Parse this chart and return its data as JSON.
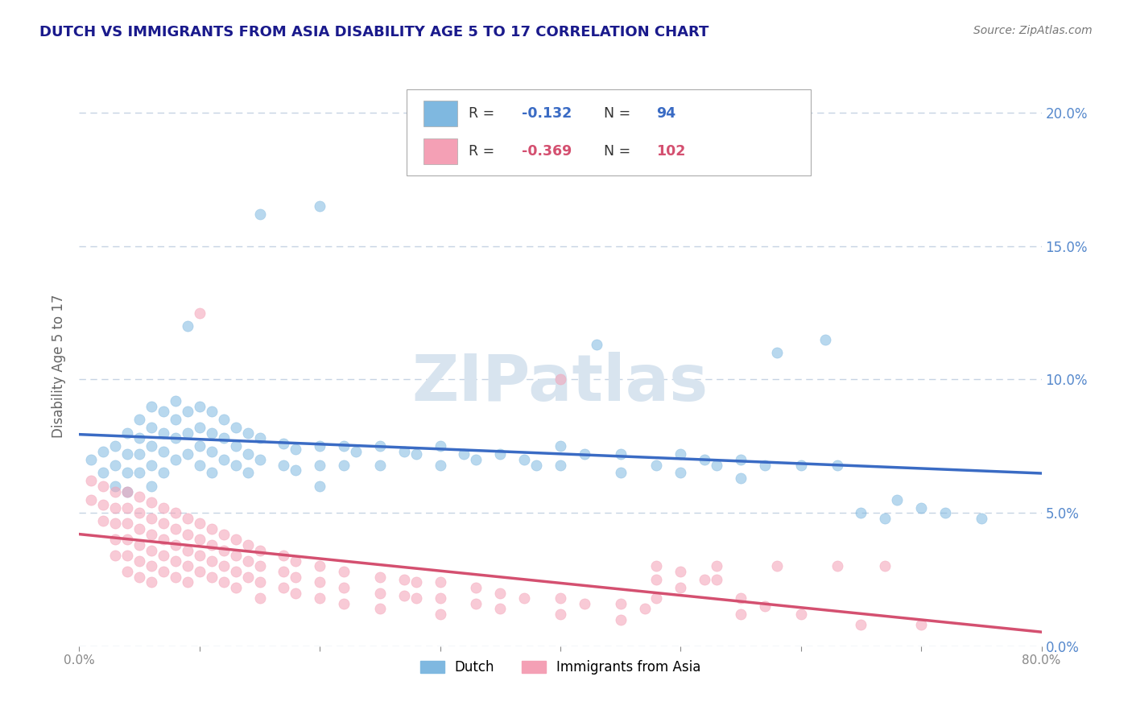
{
  "title": "DUTCH VS IMMIGRANTS FROM ASIA DISABILITY AGE 5 TO 17 CORRELATION CHART",
  "source": "Source: ZipAtlas.com",
  "ylabel": "Disability Age 5 to 17",
  "xlim": [
    0.0,
    0.8
  ],
  "ylim": [
    0.0,
    0.21
  ],
  "xticks": [
    0.0,
    0.1,
    0.2,
    0.3,
    0.4,
    0.5,
    0.6,
    0.7,
    0.8
  ],
  "xticklabels": [
    "0.0%",
    "",
    "",
    "",
    "",
    "",
    "",
    "",
    "80.0%"
  ],
  "yticks": [
    0.0,
    0.05,
    0.1,
    0.15,
    0.2
  ],
  "yticklabels": [
    "0.0%",
    "5.0%",
    "10.0%",
    "15.0%",
    "20.0%"
  ],
  "dutch_scatter_color": "#7fb8e0",
  "asia_scatter_color": "#f4a0b5",
  "dutch_line_color": "#3a6bc4",
  "asia_line_color": "#d45070",
  "dutch_R": -0.132,
  "dutch_N": 94,
  "asia_R": -0.369,
  "asia_N": 102,
  "legend_label_dutch": "Dutch",
  "legend_label_asia": "Immigrants from Asia",
  "watermark": "ZIPatlas",
  "dutch_scatter": [
    [
      0.01,
      0.07
    ],
    [
      0.02,
      0.073
    ],
    [
      0.02,
      0.065
    ],
    [
      0.03,
      0.075
    ],
    [
      0.03,
      0.068
    ],
    [
      0.03,
      0.06
    ],
    [
      0.04,
      0.08
    ],
    [
      0.04,
      0.072
    ],
    [
      0.04,
      0.065
    ],
    [
      0.04,
      0.058
    ],
    [
      0.05,
      0.085
    ],
    [
      0.05,
      0.078
    ],
    [
      0.05,
      0.072
    ],
    [
      0.05,
      0.065
    ],
    [
      0.06,
      0.09
    ],
    [
      0.06,
      0.082
    ],
    [
      0.06,
      0.075
    ],
    [
      0.06,
      0.068
    ],
    [
      0.06,
      0.06
    ],
    [
      0.07,
      0.088
    ],
    [
      0.07,
      0.08
    ],
    [
      0.07,
      0.073
    ],
    [
      0.07,
      0.065
    ],
    [
      0.08,
      0.092
    ],
    [
      0.08,
      0.085
    ],
    [
      0.08,
      0.078
    ],
    [
      0.08,
      0.07
    ],
    [
      0.09,
      0.12
    ],
    [
      0.09,
      0.088
    ],
    [
      0.09,
      0.08
    ],
    [
      0.09,
      0.072
    ],
    [
      0.1,
      0.09
    ],
    [
      0.1,
      0.082
    ],
    [
      0.1,
      0.075
    ],
    [
      0.1,
      0.068
    ],
    [
      0.11,
      0.088
    ],
    [
      0.11,
      0.08
    ],
    [
      0.11,
      0.073
    ],
    [
      0.11,
      0.065
    ],
    [
      0.12,
      0.085
    ],
    [
      0.12,
      0.078
    ],
    [
      0.12,
      0.07
    ],
    [
      0.13,
      0.082
    ],
    [
      0.13,
      0.075
    ],
    [
      0.13,
      0.068
    ],
    [
      0.14,
      0.08
    ],
    [
      0.14,
      0.072
    ],
    [
      0.14,
      0.065
    ],
    [
      0.15,
      0.078
    ],
    [
      0.15,
      0.07
    ],
    [
      0.15,
      0.162
    ],
    [
      0.17,
      0.076
    ],
    [
      0.17,
      0.068
    ],
    [
      0.18,
      0.074
    ],
    [
      0.18,
      0.066
    ],
    [
      0.2,
      0.165
    ],
    [
      0.2,
      0.075
    ],
    [
      0.2,
      0.068
    ],
    [
      0.2,
      0.06
    ],
    [
      0.22,
      0.075
    ],
    [
      0.22,
      0.068
    ],
    [
      0.23,
      0.073
    ],
    [
      0.25,
      0.075
    ],
    [
      0.25,
      0.068
    ],
    [
      0.27,
      0.073
    ],
    [
      0.28,
      0.072
    ],
    [
      0.3,
      0.075
    ],
    [
      0.3,
      0.068
    ],
    [
      0.32,
      0.072
    ],
    [
      0.33,
      0.07
    ],
    [
      0.35,
      0.072
    ],
    [
      0.37,
      0.07
    ],
    [
      0.38,
      0.068
    ],
    [
      0.4,
      0.075
    ],
    [
      0.4,
      0.068
    ],
    [
      0.42,
      0.072
    ],
    [
      0.43,
      0.113
    ],
    [
      0.45,
      0.072
    ],
    [
      0.45,
      0.065
    ],
    [
      0.48,
      0.068
    ],
    [
      0.5,
      0.072
    ],
    [
      0.5,
      0.065
    ],
    [
      0.52,
      0.07
    ],
    [
      0.53,
      0.068
    ],
    [
      0.55,
      0.07
    ],
    [
      0.55,
      0.063
    ],
    [
      0.57,
      0.068
    ],
    [
      0.58,
      0.11
    ],
    [
      0.6,
      0.068
    ],
    [
      0.62,
      0.115
    ],
    [
      0.63,
      0.068
    ],
    [
      0.65,
      0.05
    ],
    [
      0.67,
      0.048
    ],
    [
      0.68,
      0.055
    ],
    [
      0.7,
      0.052
    ],
    [
      0.72,
      0.05
    ],
    [
      0.75,
      0.048
    ]
  ],
  "asia_scatter": [
    [
      0.01,
      0.062
    ],
    [
      0.01,
      0.055
    ],
    [
      0.02,
      0.06
    ],
    [
      0.02,
      0.053
    ],
    [
      0.02,
      0.047
    ],
    [
      0.03,
      0.058
    ],
    [
      0.03,
      0.052
    ],
    [
      0.03,
      0.046
    ],
    [
      0.03,
      0.04
    ],
    [
      0.03,
      0.034
    ],
    [
      0.04,
      0.058
    ],
    [
      0.04,
      0.052
    ],
    [
      0.04,
      0.046
    ],
    [
      0.04,
      0.04
    ],
    [
      0.04,
      0.034
    ],
    [
      0.04,
      0.028
    ],
    [
      0.05,
      0.056
    ],
    [
      0.05,
      0.05
    ],
    [
      0.05,
      0.044
    ],
    [
      0.05,
      0.038
    ],
    [
      0.05,
      0.032
    ],
    [
      0.05,
      0.026
    ],
    [
      0.06,
      0.054
    ],
    [
      0.06,
      0.048
    ],
    [
      0.06,
      0.042
    ],
    [
      0.06,
      0.036
    ],
    [
      0.06,
      0.03
    ],
    [
      0.06,
      0.024
    ],
    [
      0.07,
      0.052
    ],
    [
      0.07,
      0.046
    ],
    [
      0.07,
      0.04
    ],
    [
      0.07,
      0.034
    ],
    [
      0.07,
      0.028
    ],
    [
      0.08,
      0.05
    ],
    [
      0.08,
      0.044
    ],
    [
      0.08,
      0.038
    ],
    [
      0.08,
      0.032
    ],
    [
      0.08,
      0.026
    ],
    [
      0.09,
      0.048
    ],
    [
      0.09,
      0.042
    ],
    [
      0.09,
      0.036
    ],
    [
      0.09,
      0.03
    ],
    [
      0.09,
      0.024
    ],
    [
      0.1,
      0.125
    ],
    [
      0.1,
      0.046
    ],
    [
      0.1,
      0.04
    ],
    [
      0.1,
      0.034
    ],
    [
      0.1,
      0.028
    ],
    [
      0.11,
      0.044
    ],
    [
      0.11,
      0.038
    ],
    [
      0.11,
      0.032
    ],
    [
      0.11,
      0.026
    ],
    [
      0.12,
      0.042
    ],
    [
      0.12,
      0.036
    ],
    [
      0.12,
      0.03
    ],
    [
      0.12,
      0.024
    ],
    [
      0.13,
      0.04
    ],
    [
      0.13,
      0.034
    ],
    [
      0.13,
      0.028
    ],
    [
      0.13,
      0.022
    ],
    [
      0.14,
      0.038
    ],
    [
      0.14,
      0.032
    ],
    [
      0.14,
      0.026
    ],
    [
      0.15,
      0.036
    ],
    [
      0.15,
      0.03
    ],
    [
      0.15,
      0.024
    ],
    [
      0.15,
      0.018
    ],
    [
      0.17,
      0.034
    ],
    [
      0.17,
      0.028
    ],
    [
      0.17,
      0.022
    ],
    [
      0.18,
      0.032
    ],
    [
      0.18,
      0.026
    ],
    [
      0.18,
      0.02
    ],
    [
      0.2,
      0.03
    ],
    [
      0.2,
      0.024
    ],
    [
      0.2,
      0.018
    ],
    [
      0.22,
      0.028
    ],
    [
      0.22,
      0.022
    ],
    [
      0.22,
      0.016
    ],
    [
      0.25,
      0.026
    ],
    [
      0.25,
      0.02
    ],
    [
      0.25,
      0.014
    ],
    [
      0.27,
      0.025
    ],
    [
      0.27,
      0.019
    ],
    [
      0.28,
      0.024
    ],
    [
      0.28,
      0.018
    ],
    [
      0.3,
      0.024
    ],
    [
      0.3,
      0.018
    ],
    [
      0.3,
      0.012
    ],
    [
      0.33,
      0.022
    ],
    [
      0.33,
      0.016
    ],
    [
      0.35,
      0.02
    ],
    [
      0.35,
      0.014
    ],
    [
      0.37,
      0.018
    ],
    [
      0.4,
      0.1
    ],
    [
      0.4,
      0.018
    ],
    [
      0.4,
      0.012
    ],
    [
      0.42,
      0.016
    ],
    [
      0.45,
      0.016
    ],
    [
      0.45,
      0.01
    ],
    [
      0.47,
      0.014
    ],
    [
      0.48,
      0.03
    ],
    [
      0.48,
      0.025
    ],
    [
      0.48,
      0.018
    ],
    [
      0.5,
      0.028
    ],
    [
      0.5,
      0.022
    ],
    [
      0.52,
      0.025
    ],
    [
      0.53,
      0.03
    ],
    [
      0.53,
      0.025
    ],
    [
      0.55,
      0.018
    ],
    [
      0.55,
      0.012
    ],
    [
      0.57,
      0.015
    ],
    [
      0.58,
      0.03
    ],
    [
      0.6,
      0.012
    ],
    [
      0.63,
      0.03
    ],
    [
      0.65,
      0.008
    ],
    [
      0.67,
      0.03
    ],
    [
      0.7,
      0.008
    ]
  ],
  "title_color": "#1a1a8c",
  "source_color": "#777777",
  "axis_label_color": "#666666",
  "tick_color": "#888888",
  "right_ytick_color": "#5588cc",
  "grid_color": "#c0cfe0",
  "watermark_color": "#d8e4ef"
}
